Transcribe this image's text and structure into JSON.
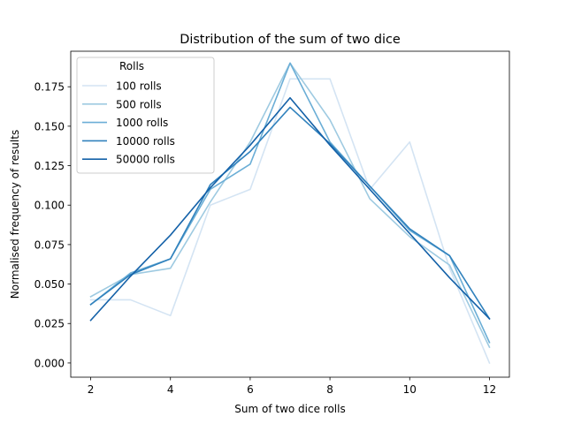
{
  "chart_data": {
    "type": "line",
    "title": "Distribution of the sum of two dice",
    "xlabel": "Sum of two dice rolls",
    "ylabel": "Normalised frequency of results",
    "xlim": [
      1.5,
      12.5
    ],
    "ylim": [
      -0.009,
      0.1975
    ],
    "xticks": [
      2,
      4,
      6,
      8,
      10,
      12
    ],
    "xtick_labels": [
      "2",
      "4",
      "6",
      "8",
      "10",
      "12"
    ],
    "yticks": [
      0.0,
      0.025,
      0.05,
      0.075,
      0.1,
      0.125,
      0.15,
      0.175
    ],
    "ytick_labels": [
      "0.000",
      "0.025",
      "0.050",
      "0.075",
      "0.100",
      "0.125",
      "0.150",
      "0.175"
    ],
    "grid": false,
    "legend": {
      "title": "Rolls",
      "placement": "upper left"
    },
    "x": [
      2,
      3,
      4,
      5,
      6,
      7,
      8,
      9,
      10,
      11,
      12
    ],
    "series": [
      {
        "name": "100 rolls",
        "color": "#d4e4f3",
        "values": [
          0.04,
          0.04,
          0.03,
          0.1,
          0.11,
          0.18,
          0.18,
          0.11,
          0.14,
          0.06,
          0.0
        ]
      },
      {
        "name": "500 rolls",
        "color": "#9ecae1",
        "values": [
          0.042,
          0.056,
          0.06,
          0.102,
          0.14,
          0.19,
          0.154,
          0.104,
          0.08,
          0.062,
          0.01
        ]
      },
      {
        "name": "1000 rolls",
        "color": "#6baed6",
        "values": [
          0.037,
          0.057,
          0.066,
          0.11,
          0.126,
          0.19,
          0.14,
          0.112,
          0.084,
          0.068,
          0.013
        ]
      },
      {
        "name": "10000 rolls",
        "color": "#3182bd",
        "values": [
          0.037,
          0.056,
          0.066,
          0.113,
          0.134,
          0.162,
          0.139,
          0.112,
          0.085,
          0.068,
          0.028
        ]
      },
      {
        "name": "50000 rolls",
        "color": "#1461a8",
        "values": [
          0.027,
          0.055,
          0.081,
          0.111,
          0.138,
          0.168,
          0.138,
          0.11,
          0.082,
          0.054,
          0.028
        ]
      }
    ]
  }
}
